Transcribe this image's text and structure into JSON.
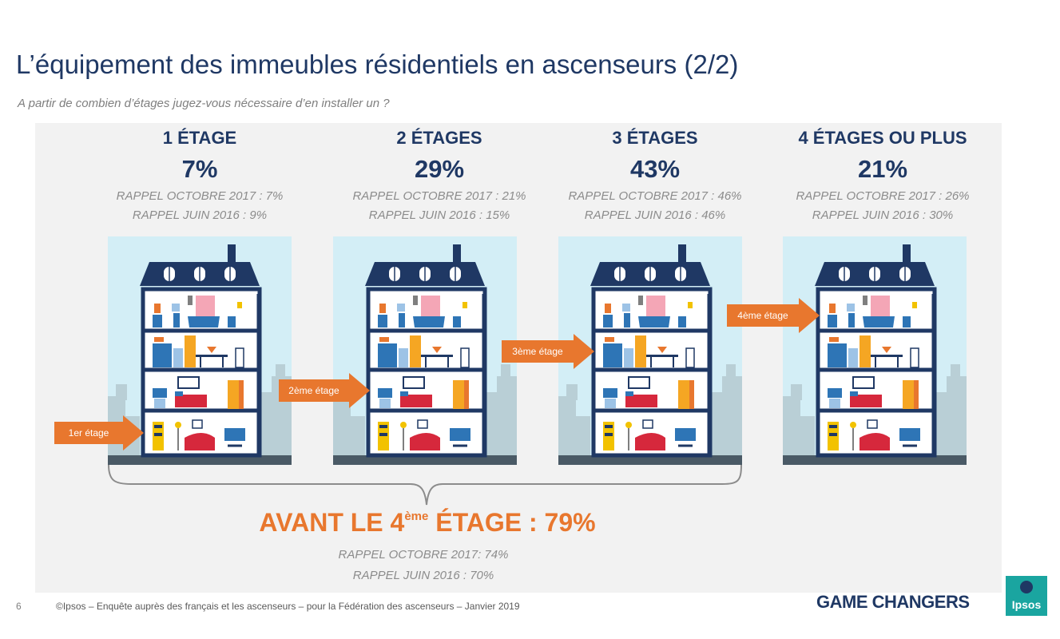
{
  "title": "L’équipement des immeubles résidentiels en ascenseurs (2/2)",
  "question": "A partir de combien d’étages jugez-vous nécessaire d’en installer un ?",
  "columns": [
    {
      "label": "1 ÉTAGE",
      "value": "7%",
      "rappel_oct": "RAPPEL OCTOBRE 2017 : 7%",
      "rappel_juin": "RAPPEL JUIN 2016 : 9%",
      "arrow": "1er étage"
    },
    {
      "label": "2 ÉTAGES",
      "value": "29%",
      "rappel_oct": "RAPPEL OCTOBRE 2017 : 21%",
      "rappel_juin": "RAPPEL JUIN 2016 : 15%",
      "arrow": "2ème étage"
    },
    {
      "label": "3 ÉTAGES",
      "value": "43%",
      "rappel_oct": "RAPPEL OCTOBRE 2017 : 46%",
      "rappel_juin": "RAPPEL JUIN 2016 : 46%",
      "arrow": "3ème étage"
    },
    {
      "label": "4 ÉTAGES OU PLUS",
      "value": "21%",
      "rappel_oct": "RAPPEL OCTOBRE 2017 : 26%",
      "rappel_juin": "RAPPEL JUIN 2016 : 30%",
      "arrow": "4ème étage"
    }
  ],
  "summary": {
    "prefix": "AVANT LE 4",
    "sup": "ème",
    "suffix": " ÉTAGE : 79%",
    "rappel_oct": "RAPPEL OCTOBRE 2017: 74%",
    "rappel_juin": "RAPPEL JUIN 2016 : 70%"
  },
  "footer": {
    "page": "6",
    "source": "©Ipsos – Enquête auprès des français et les ascenseurs – pour la Fédération des ascenseurs – Janvier 2019",
    "tagline": "GAME CHANGERS",
    "logo": "Ipsos"
  },
  "colors": {
    "navy": "#1f3864",
    "orange": "#e8772e",
    "sky": "#d3eef6",
    "panel": "#f2f2f2"
  }
}
